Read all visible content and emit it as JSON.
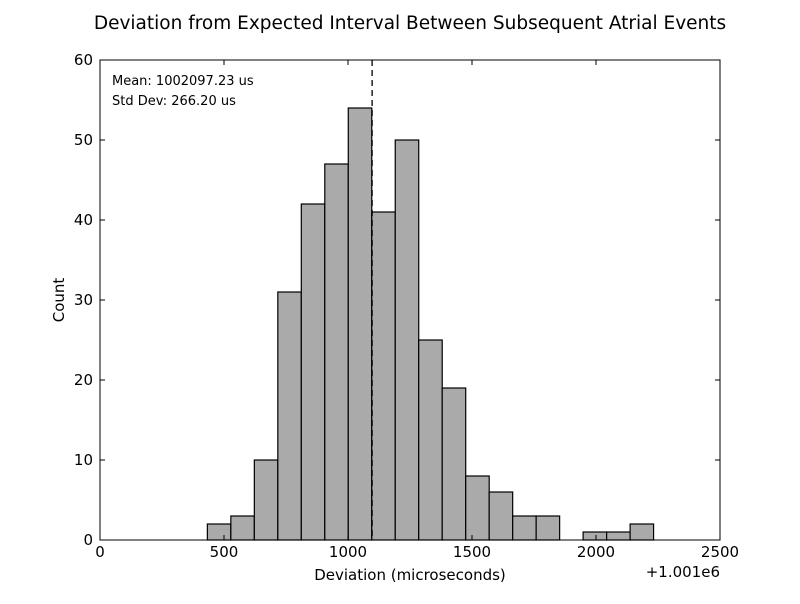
{
  "chart_data": {
    "type": "bar",
    "title": "Deviation from Expected Interval Between Subsequent Atrial Events",
    "xlabel": "Deviation (microseconds)",
    "ylabel": "Count",
    "x_offset_label": "+1.001e6",
    "xlim": [
      0,
      2500
    ],
    "ylim": [
      0,
      60
    ],
    "xticks": [
      0,
      500,
      1000,
      1500,
      2000,
      2500
    ],
    "yticks": [
      0,
      10,
      20,
      30,
      40,
      50,
      60
    ],
    "bin_width": 94.7,
    "bins": [
      {
        "start": 432.9,
        "count": 2
      },
      {
        "start": 527.6,
        "count": 3
      },
      {
        "start": 622.3,
        "count": 10
      },
      {
        "start": 717.0,
        "count": 31
      },
      {
        "start": 811.7,
        "count": 42
      },
      {
        "start": 906.4,
        "count": 47
      },
      {
        "start": 1001.1,
        "count": 54
      },
      {
        "start": 1095.8,
        "count": 41
      },
      {
        "start": 1190.5,
        "count": 50
      },
      {
        "start": 1285.2,
        "count": 25
      },
      {
        "start": 1379.9,
        "count": 19
      },
      {
        "start": 1474.6,
        "count": 8
      },
      {
        "start": 1569.3,
        "count": 6
      },
      {
        "start": 1664.0,
        "count": 3
      },
      {
        "start": 1758.7,
        "count": 3
      },
      {
        "start": 1853.4,
        "count": 0
      },
      {
        "start": 1948.1,
        "count": 1
      },
      {
        "start": 2042.8,
        "count": 1
      },
      {
        "start": 2137.5,
        "count": 2
      }
    ],
    "mean_line_x": 1097.23,
    "annotations": {
      "mean": "Mean: 1002097.23 us",
      "std": "Std Dev: 266.20 us"
    },
    "bar_color": "#aaaaaa",
    "edge_color": "#000000",
    "grid": false
  }
}
